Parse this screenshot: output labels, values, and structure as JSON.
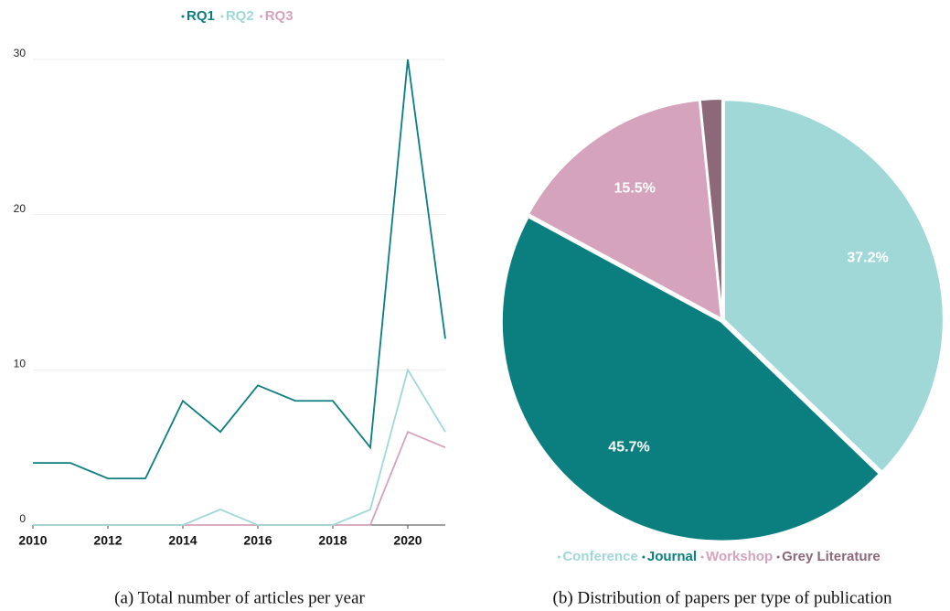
{
  "chart_data": [
    {
      "type": "line",
      "caption": "(a) Total number of articles per year",
      "x": [
        2010,
        2011,
        2012,
        2013,
        2014,
        2015,
        2016,
        2017,
        2018,
        2019,
        2020,
        2021
      ],
      "series": [
        {
          "name": "RQ1",
          "color": "#0b7f7f",
          "values": [
            4,
            4,
            3,
            3,
            8,
            6,
            9,
            8,
            8,
            5,
            30,
            12
          ]
        },
        {
          "name": "RQ2",
          "color": "#a0d8d8",
          "values": [
            0,
            0,
            0,
            0,
            0,
            1,
            0,
            0,
            0,
            1,
            10,
            6
          ]
        },
        {
          "name": "RQ3",
          "color": "#d5a3bc",
          "values": [
            0,
            0,
            0,
            0,
            0,
            0,
            0,
            0,
            0,
            0,
            6,
            5
          ]
        }
      ],
      "xlim": [
        2010,
        2021
      ],
      "xticks": [
        2010,
        2012,
        2014,
        2016,
        2018,
        2020
      ],
      "ylim": [
        0,
        30
      ],
      "yticks": [
        0,
        10,
        20,
        30
      ],
      "grid": true,
      "legend": "top"
    },
    {
      "type": "pie",
      "caption": "(b) Distribution of papers per type of publication",
      "categories": [
        "Conference",
        "Journal",
        "Workshop",
        "Grey Literature"
      ],
      "values": [
        37.2,
        45.7,
        15.5,
        1.6
      ],
      "value_labels": [
        "37.2%",
        "45.7%",
        "15.5%",
        null
      ],
      "colors": [
        "#a0d8d8",
        "#0b7f7f",
        "#d5a3bc",
        "#8c6878"
      ],
      "legend": "bottom"
    }
  ]
}
